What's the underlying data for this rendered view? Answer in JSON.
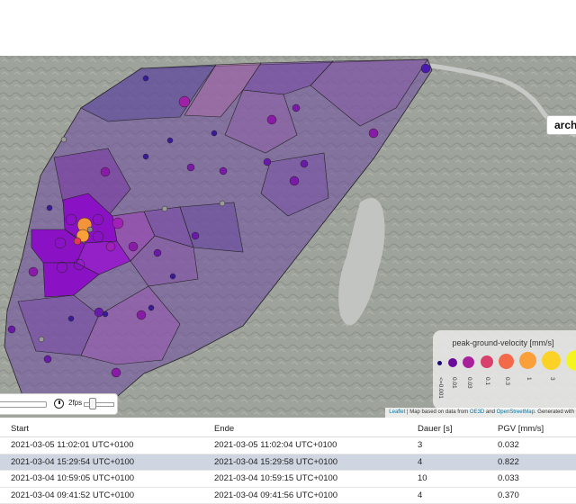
{
  "map": {
    "archive_label": "archi",
    "attribution": {
      "leaflet": "Leaflet",
      "text1": " | Map based on data from ",
      "oe3d": "OE3D",
      "and": " and ",
      "osm": "OpenStreetMap",
      "text2": ". Generated with"
    },
    "player": {
      "fps_label": "2fps"
    }
  },
  "legend": {
    "title": "peak-ground-velocity [mm/s]",
    "items": [
      {
        "label": "<=0.001",
        "color": "#1a0a6e"
      },
      {
        "label": "0.01",
        "color": "#6a0a9a"
      },
      {
        "label": "0.03",
        "color": "#a8209a"
      },
      {
        "label": "0.1",
        "color": "#d8406e"
      },
      {
        "label": "0.3",
        "color": "#f26a4a"
      },
      {
        "label": "1",
        "color": "#f9a03a"
      },
      {
        "label": "3",
        "color": "#fdd227"
      },
      {
        "label": "",
        "color": "#f4f420"
      }
    ]
  },
  "table": {
    "headers": {
      "start": "Start",
      "ende": "Ende",
      "dauer": "Dauer [s]",
      "pgv": "PGV [mm/s]"
    },
    "rows": [
      {
        "start": "2021-03-05 11:02:01 UTC+0100",
        "ende": "2021-03-05 11:02:04 UTC+0100",
        "dauer": "3",
        "pgv": "0.032"
      },
      {
        "start": "2021-03-04 15:29:54 UTC+0100",
        "ende": "2021-03-04 15:29:58 UTC+0100",
        "dauer": "4",
        "pgv": "0.822"
      },
      {
        "start": "2021-03-04 10:59:05 UTC+0100",
        "ende": "2021-03-04 10:59:15 UTC+0100",
        "dauer": "10",
        "pgv": "0.033"
      },
      {
        "start": "2021-03-04 09:41:52 UTC+0100",
        "ende": "2021-03-04 09:41:56 UTC+0100",
        "dauer": "4",
        "pgv": "0.370"
      }
    ]
  }
}
